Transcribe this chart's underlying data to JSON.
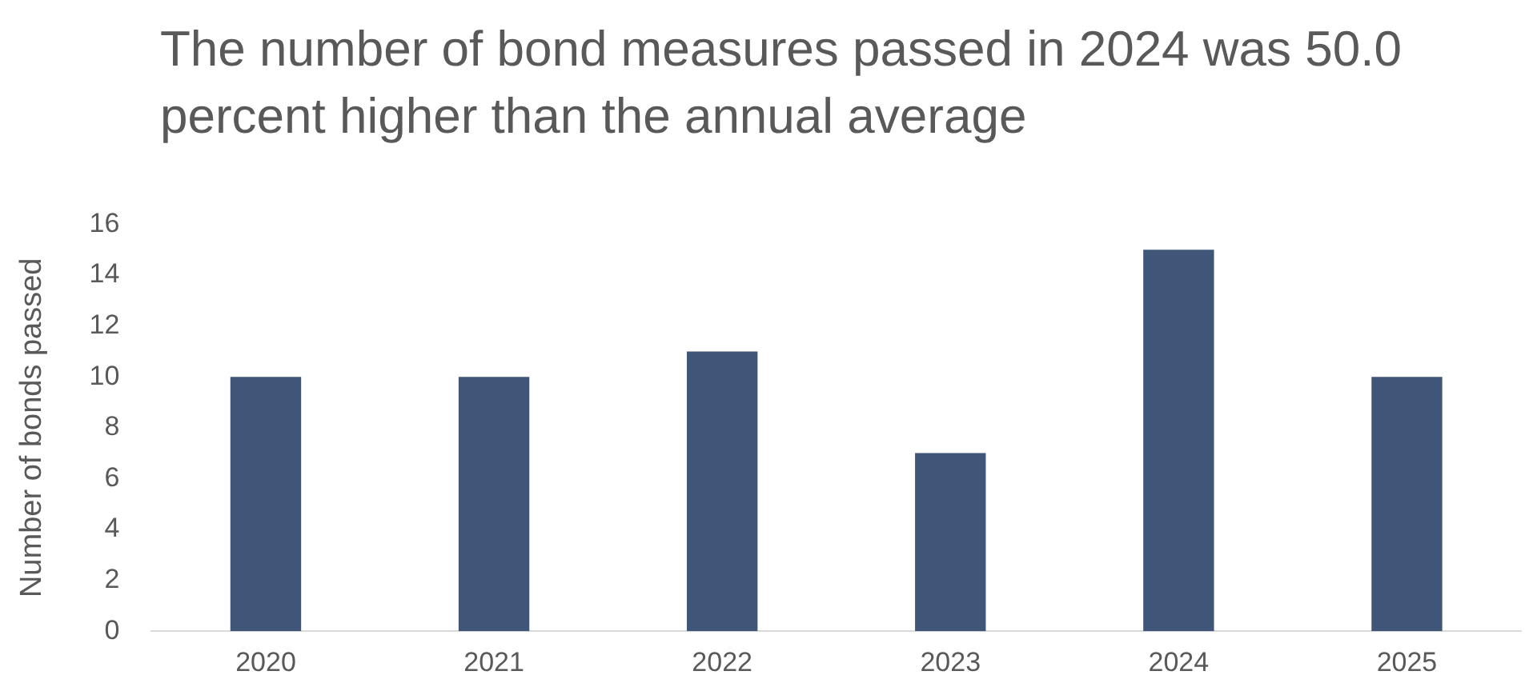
{
  "chart_data": {
    "type": "bar",
    "title": "The number of bond measures passed in 2024 was 50.0 percent higher than the annual average",
    "ylabel": "Number of bonds passed",
    "categories": [
      "2020",
      "2021",
      "2022",
      "2023",
      "2024",
      "2025"
    ],
    "values": [
      10,
      10,
      11,
      7,
      15,
      10
    ],
    "color": "#3f5679",
    "ylim": [
      0,
      16
    ],
    "yticks": [
      0,
      2,
      4,
      6,
      8,
      10,
      12,
      14,
      16
    ],
    "grid": false,
    "legend": false
  }
}
